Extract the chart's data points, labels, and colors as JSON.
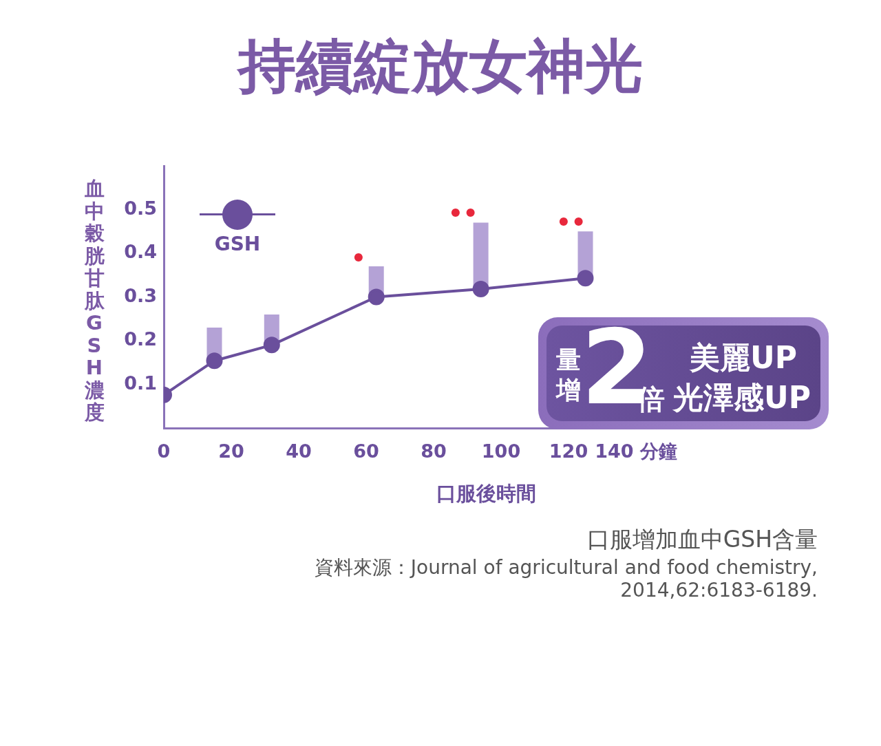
{
  "chart_data": {
    "type": "line",
    "title": "持續綻放女神光",
    "xlabel": "口服後時間",
    "ylabel": "血中穀胱甘肽GSH濃度",
    "x": [
      0,
      15,
      32,
      63,
      94,
      125
    ],
    "series": [
      {
        "name": "GSH",
        "color": "#6a4f9c",
        "values": [
          0.076,
          0.154,
          0.19,
          0.3,
          0.318,
          0.343
        ],
        "errors": [
          null,
          [
            0.154,
            0.23
          ],
          [
            0.19,
            0.26
          ],
          [
            0.3,
            0.37
          ],
          [
            0.318,
            0.47
          ],
          [
            0.343,
            0.45
          ]
        ]
      }
    ],
    "xlim": [
      0,
      140
    ],
    "xticks": [
      0,
      20,
      40,
      60,
      80,
      100,
      120,
      {
        "value": 140,
        "label": "140 分鐘"
      }
    ],
    "ylim": [
      0,
      0.6
    ],
    "yticks": [
      0.1,
      0.2,
      0.3,
      0.4,
      0.5
    ],
    "grid": false,
    "legend": "top left",
    "marker": "circle",
    "line_style": "solid",
    "annotations": [
      "量增",
      "2",
      "倍",
      "美麗UP",
      "光澤感UP",
      "口服增加血中GSH含量",
      "資料來源：Journal of agricultural and food chemistry, 2014,62:6183-6189.",
      "•",
      "••",
      "••"
    ]
  }
}
